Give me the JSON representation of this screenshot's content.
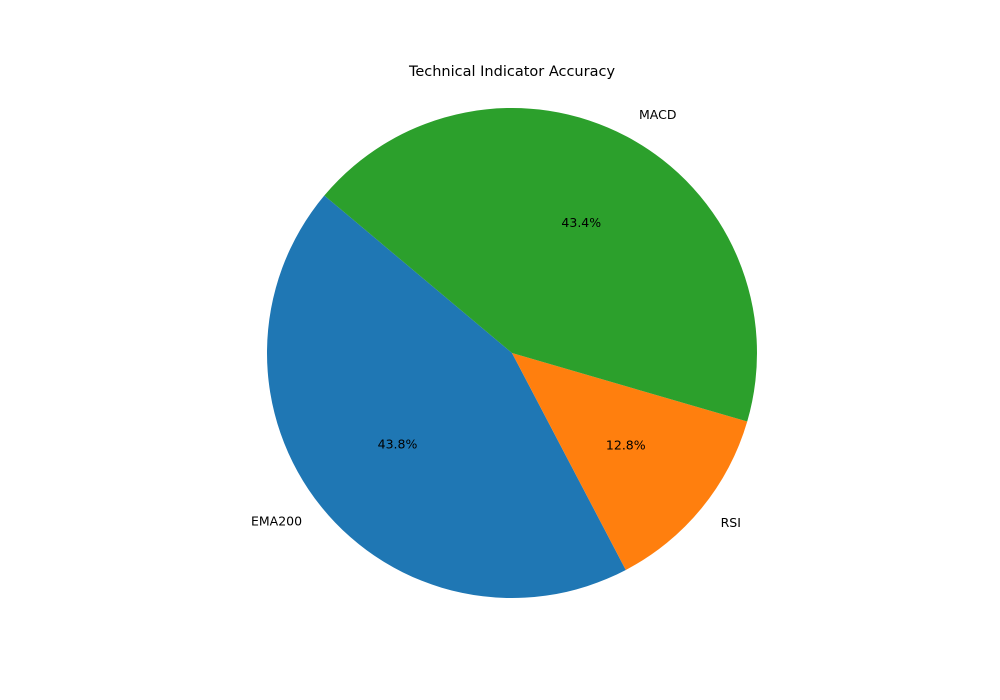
{
  "chart_data": {
    "type": "pie",
    "title": "Technical Indicator Accuracy",
    "slices": [
      {
        "label": "EMA200",
        "value": 43.8,
        "pct_label": "43.8%",
        "color": "#1f77b4"
      },
      {
        "label": "RSI",
        "value": 12.8,
        "pct_label": "12.8%",
        "color": "#ff7f0e"
      },
      {
        "label": "MACD",
        "value": 43.4,
        "pct_label": "43.4%",
        "color": "#2ca02c"
      }
    ],
    "start_angle_deg": 140,
    "direction": "counterclockwise",
    "legend": "none"
  }
}
